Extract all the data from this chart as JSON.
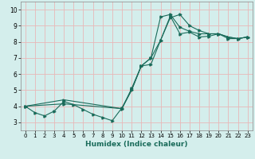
{
  "xlabel": "Humidex (Indice chaleur)",
  "ylabel": "",
  "bg_color": "#d4eeec",
  "grid_color": "#e8b8b8",
  "line_color": "#1a6b5a",
  "xlim": [
    -0.5,
    23.5
  ],
  "ylim": [
    2.5,
    10.5
  ],
  "xticks": [
    0,
    1,
    2,
    3,
    4,
    5,
    6,
    7,
    8,
    9,
    10,
    11,
    12,
    13,
    14,
    15,
    16,
    17,
    18,
    19,
    20,
    21,
    22,
    23
  ],
  "yticks": [
    3,
    4,
    5,
    6,
    7,
    8,
    9,
    10
  ],
  "line1_x": [
    0,
    1,
    2,
    3,
    4,
    5,
    6,
    7,
    8,
    9,
    10,
    11,
    12,
    13,
    14,
    15,
    16,
    17,
    18,
    19,
    20,
    21,
    22,
    23
  ],
  "line1_y": [
    4.0,
    3.6,
    3.4,
    3.7,
    4.3,
    4.1,
    3.8,
    3.5,
    3.3,
    3.1,
    3.9,
    5.0,
    6.5,
    7.0,
    8.1,
    9.5,
    9.7,
    9.0,
    8.7,
    8.5,
    8.5,
    8.2,
    8.2,
    8.3
  ],
  "line2_x": [
    0,
    4,
    10,
    11,
    12,
    13,
    14,
    15,
    16,
    17,
    18,
    19,
    20,
    21,
    22,
    23
  ],
  "line2_y": [
    4.0,
    4.4,
    3.85,
    5.1,
    6.5,
    7.0,
    9.55,
    9.7,
    8.9,
    8.65,
    8.5,
    8.5,
    8.5,
    8.3,
    8.2,
    8.3
  ],
  "line3_x": [
    0,
    4,
    10,
    11,
    12,
    13,
    14,
    15,
    16,
    17,
    18,
    19,
    20,
    21,
    22,
    23
  ],
  "line3_y": [
    4.0,
    4.15,
    3.85,
    5.0,
    6.5,
    6.6,
    8.1,
    9.6,
    8.5,
    8.6,
    8.3,
    8.35,
    8.5,
    8.3,
    8.2,
    8.3
  ]
}
